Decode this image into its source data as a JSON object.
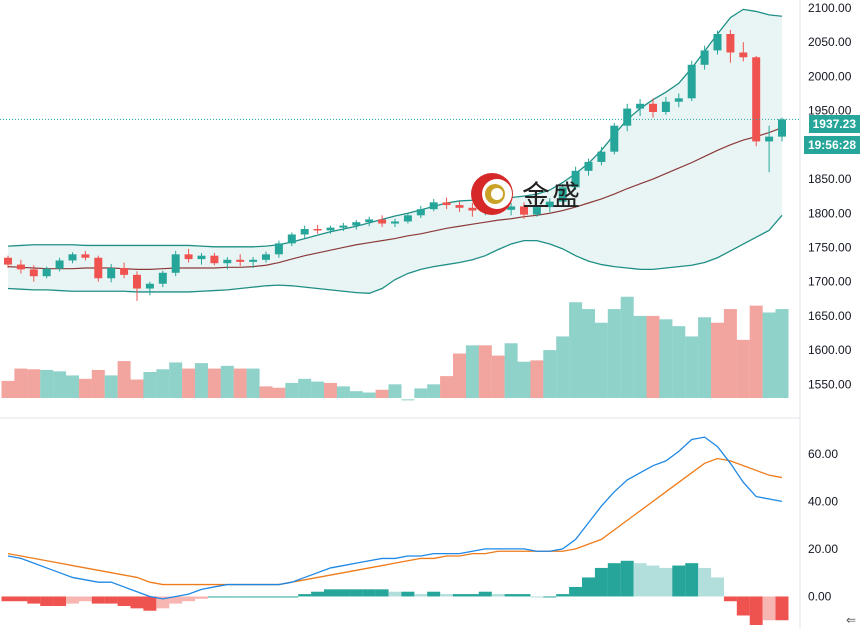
{
  "brand": {
    "logo_text": "金盛"
  },
  "price_labels": {
    "current_price": "1937.23",
    "countdown": "19:56:28"
  },
  "nav": {
    "back_arrow": "⇐"
  },
  "chart_data": [
    {
      "type": "candlestick",
      "overlays": [
        "bollinger_bands",
        "moving_average"
      ],
      "y_ticks": [
        "2100.00",
        "2050.00",
        "2000.00",
        "1950.00",
        "1900.00",
        "1850.00",
        "1800.00",
        "1750.00",
        "1700.00",
        "1650.00",
        "1600.00",
        "1550.00"
      ],
      "ylim": [
        1530,
        2100
      ],
      "current_price": 1937.23,
      "colors": {
        "up": "#26a69a",
        "down": "#ef5350",
        "band": "#1f8f86",
        "band_fill": "#e9f5f4",
        "ma": "#8b3a3a"
      },
      "candles": [
        [
          1735,
          1738,
          1720,
          1725
        ],
        [
          1725,
          1732,
          1712,
          1718
        ],
        [
          1718,
          1724,
          1700,
          1708
        ],
        [
          1708,
          1722,
          1705,
          1719
        ],
        [
          1719,
          1735,
          1715,
          1731
        ],
        [
          1731,
          1743,
          1727,
          1740
        ],
        [
          1740,
          1745,
          1731,
          1735
        ],
        [
          1735,
          1738,
          1700,
          1705
        ],
        [
          1705,
          1726,
          1699,
          1720
        ],
        [
          1720,
          1728,
          1705,
          1710
        ],
        [
          1710,
          1715,
          1672,
          1690
        ],
        [
          1690,
          1700,
          1680,
          1697
        ],
        [
          1697,
          1716,
          1692,
          1713
        ],
        [
          1713,
          1745,
          1708,
          1740
        ],
        [
          1740,
          1748,
          1728,
          1733
        ],
        [
          1733,
          1742,
          1725,
          1738
        ],
        [
          1738,
          1742,
          1724,
          1727
        ],
        [
          1727,
          1736,
          1718,
          1732
        ],
        [
          1732,
          1740,
          1723,
          1729
        ],
        [
          1729,
          1736,
          1720,
          1732
        ],
        [
          1732,
          1744,
          1728,
          1740
        ],
        [
          1740,
          1760,
          1735,
          1756
        ],
        [
          1756,
          1772,
          1752,
          1769
        ],
        [
          1769,
          1782,
          1764,
          1777
        ],
        [
          1777,
          1783,
          1770,
          1775
        ],
        [
          1775,
          1782,
          1770,
          1779
        ],
        [
          1779,
          1786,
          1774,
          1782
        ],
        [
          1782,
          1790,
          1776,
          1787
        ],
        [
          1787,
          1795,
          1781,
          1791
        ],
        [
          1791,
          1797,
          1780,
          1785
        ],
        [
          1785,
          1792,
          1780,
          1788
        ],
        [
          1788,
          1800,
          1785,
          1797
        ],
        [
          1797,
          1811,
          1793,
          1806
        ],
        [
          1806,
          1821,
          1803,
          1816
        ],
        [
          1816,
          1823,
          1806,
          1812
        ],
        [
          1812,
          1817,
          1802,
          1808
        ],
        [
          1808,
          1815,
          1795,
          1804
        ],
        [
          1804,
          1818,
          1797,
          1813
        ],
        [
          1813,
          1822,
          1800,
          1805
        ],
        [
          1805,
          1815,
          1797,
          1810
        ],
        [
          1810,
          1816,
          1792,
          1798
        ],
        [
          1798,
          1812,
          1795,
          1809
        ],
        [
          1809,
          1822,
          1802,
          1817
        ],
        [
          1817,
          1843,
          1812,
          1838
        ],
        [
          1838,
          1868,
          1834,
          1862
        ],
        [
          1862,
          1880,
          1855,
          1875
        ],
        [
          1875,
          1897,
          1870,
          1890
        ],
        [
          1890,
          1932,
          1886,
          1928
        ],
        [
          1928,
          1960,
          1920,
          1953
        ],
        [
          1953,
          1967,
          1942,
          1960
        ],
        [
          1960,
          1968,
          1940,
          1948
        ],
        [
          1948,
          1970,
          1944,
          1963
        ],
        [
          1963,
          1975,
          1955,
          1968
        ],
        [
          1968,
          2023,
          1964,
          2017
        ],
        [
          2017,
          2045,
          2010,
          2038
        ],
        [
          2038,
          2067,
          2032,
          2062
        ],
        [
          2062,
          2068,
          2020,
          2035
        ],
        [
          2035,
          2050,
          2022,
          2028
        ],
        [
          2028,
          2030,
          1898,
          1905
        ],
        [
          1905,
          1928,
          1860,
          1912
        ],
        [
          1912,
          1940,
          1905,
          1937.23
        ]
      ],
      "moving_average": [
        1722,
        1721,
        1720,
        1719,
        1719,
        1719,
        1720,
        1720,
        1720,
        1719,
        1718,
        1718,
        1719,
        1720,
        1720,
        1720,
        1720,
        1721,
        1721,
        1722,
        1724,
        1728,
        1733,
        1738,
        1742,
        1746,
        1750,
        1754,
        1757,
        1760,
        1763,
        1767,
        1770,
        1774,
        1778,
        1781,
        1784,
        1787,
        1790,
        1792,
        1795,
        1797,
        1800,
        1804,
        1809,
        1815,
        1821,
        1828,
        1836,
        1843,
        1850,
        1858,
        1866,
        1874,
        1883,
        1892,
        1900,
        1907,
        1912,
        1918,
        1925
      ],
      "upper_band": [
        1752,
        1753,
        1754,
        1754,
        1754,
        1754,
        1753,
        1753,
        1753,
        1753,
        1753,
        1753,
        1753,
        1753,
        1753,
        1752,
        1751,
        1751,
        1751,
        1751,
        1752,
        1754,
        1758,
        1763,
        1768,
        1773,
        1777,
        1781,
        1786,
        1791,
        1796,
        1800,
        1805,
        1810,
        1815,
        1818,
        1819,
        1820,
        1821,
        1823,
        1825,
        1828,
        1834,
        1845,
        1858,
        1873,
        1892,
        1915,
        1937,
        1953,
        1966,
        1977,
        1990,
        2012,
        2037,
        2062,
        2086,
        2098,
        2095,
        2090,
        2088
      ],
      "lower_band": [
        1690,
        1689,
        1688,
        1688,
        1687,
        1686,
        1686,
        1686,
        1686,
        1686,
        1685,
        1685,
        1685,
        1685,
        1685,
        1686,
        1687,
        1688,
        1690,
        1692,
        1694,
        1695,
        1694,
        1692,
        1690,
        1688,
        1686,
        1684,
        1683,
        1690,
        1703,
        1712,
        1718,
        1722,
        1725,
        1728,
        1732,
        1738,
        1747,
        1755,
        1760,
        1760,
        1755,
        1748,
        1738,
        1730,
        1725,
        1722,
        1720,
        1718,
        1718,
        1720,
        1722,
        1724,
        1728,
        1735,
        1745,
        1755,
        1765,
        1775,
        1797
      ]
    },
    {
      "type": "bar",
      "name": "volume",
      "up_color": "#8fd2c9",
      "down_color": "#f2a49f",
      "values": [
        1555,
        1573,
        1572,
        1571,
        1569,
        1563,
        1558,
        1571,
        1563,
        1584,
        1557,
        1568,
        1572,
        1582,
        1573,
        1581,
        1573,
        1577,
        1573,
        1573,
        1547,
        1545,
        1552,
        1558,
        1554,
        1552,
        1547,
        1540,
        1538,
        1542,
        1550,
        1528,
        1544,
        1550,
        1562,
        1595,
        1607,
        1607,
        1592,
        1610,
        1583,
        1585,
        1600,
        1620,
        1670,
        1660,
        1640,
        1660,
        1678,
        1650,
        1650,
        1645,
        1635,
        1620,
        1648,
        1640,
        1660,
        1615,
        1665,
        1655,
        1660
      ],
      "direction": [
        "d",
        "d",
        "d",
        "u",
        "u",
        "u",
        "d",
        "d",
        "u",
        "d",
        "d",
        "u",
        "u",
        "u",
        "d",
        "u",
        "d",
        "u",
        "d",
        "u",
        "d",
        "d",
        "u",
        "u",
        "u",
        "d",
        "u",
        "u",
        "u",
        "d",
        "u",
        "u",
        "u",
        "u",
        "d",
        "d",
        "u",
        "d",
        "d",
        "u",
        "u",
        "d",
        "u",
        "u",
        "u",
        "u",
        "u",
        "u",
        "u",
        "u",
        "d",
        "u",
        "u",
        "u",
        "u",
        "d",
        "d",
        "d",
        "d",
        "u",
        "u"
      ]
    },
    {
      "type": "macd",
      "y_ticks": [
        "60.00",
        "40.00",
        "20.00",
        "0.00"
      ],
      "ylim": [
        -12,
        70
      ],
      "macd_color": "#1e88e5",
      "signal_color": "#ef7b1a",
      "hist_pos_strong": "#26a69a",
      "hist_pos_weak": "#b2dfdb",
      "hist_neg_strong": "#ef5350",
      "hist_neg_weak": "#f8b6b2",
      "macd": [
        17,
        16,
        14,
        12,
        10,
        8,
        7,
        6,
        6,
        4,
        2,
        0,
        -1,
        0,
        1,
        3,
        4,
        5,
        5,
        5,
        5,
        5,
        6,
        8,
        10,
        12,
        13,
        14,
        15,
        16,
        16,
        17,
        17,
        18,
        18,
        18,
        19,
        20,
        20,
        20,
        20,
        19,
        19,
        20,
        24,
        31,
        38,
        44,
        49,
        52,
        55,
        57,
        61,
        66,
        67,
        63,
        56,
        48,
        42,
        41,
        40
      ],
      "signal": [
        18,
        17,
        16,
        15,
        14,
        13,
        12,
        11,
        10,
        9,
        8,
        6,
        5,
        5,
        5,
        5,
        5,
        5,
        5,
        5,
        5,
        5,
        6,
        7,
        8,
        9,
        10,
        11,
        12,
        13,
        14,
        15,
        16,
        16,
        17,
        17,
        18,
        18,
        19,
        19,
        19,
        19,
        19,
        19,
        20,
        22,
        24,
        28,
        32,
        36,
        40,
        44,
        48,
        52,
        56,
        58,
        57,
        55,
        53,
        51,
        50
      ],
      "histogram": [
        -2,
        -2,
        -3,
        -4,
        -4,
        -3,
        -2,
        -3,
        -3,
        -4,
        -5,
        -6,
        -5,
        -3,
        -2,
        -1,
        0,
        0,
        0,
        0,
        0,
        0,
        0,
        1,
        2,
        3,
        3,
        3,
        3,
        3,
        2,
        2,
        1,
        2,
        1,
        1,
        1,
        2,
        1,
        1,
        1,
        0,
        0,
        1,
        4,
        8,
        12,
        14,
        15,
        14,
        13,
        12,
        13,
        14,
        12,
        8,
        -2,
        -8,
        -12,
        -10,
        -10
      ]
    }
  ]
}
